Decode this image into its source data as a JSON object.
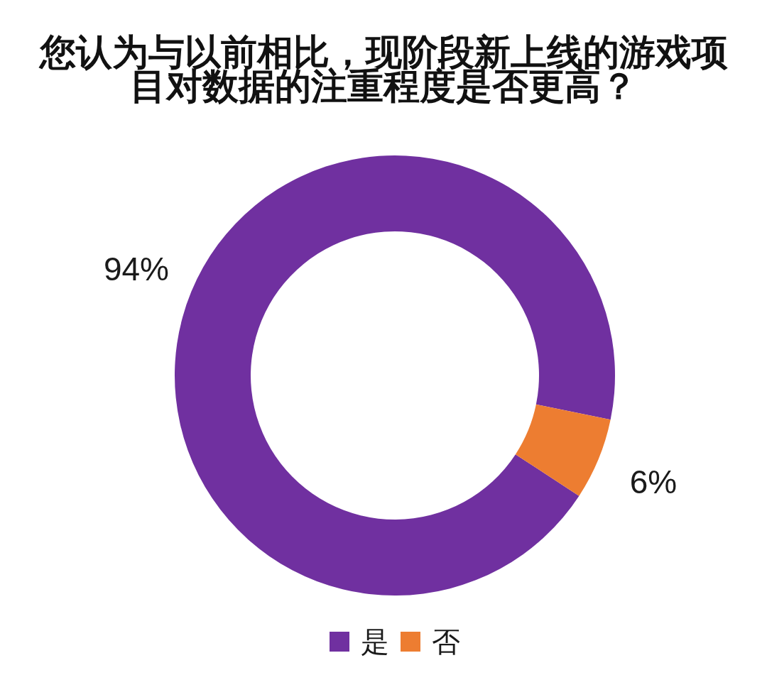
{
  "chart_data": {
    "type": "donut",
    "title": "您认为与以前相比，现阶段新上线的游戏项目对数据的注重程度是否更高？",
    "categories": [
      "是",
      "否"
    ],
    "values": [
      94,
      6
    ],
    "colors": [
      "#7030a0",
      "#ed7d31"
    ],
    "value_labels": [
      "94%",
      "6%"
    ],
    "legend": "bottom"
  }
}
